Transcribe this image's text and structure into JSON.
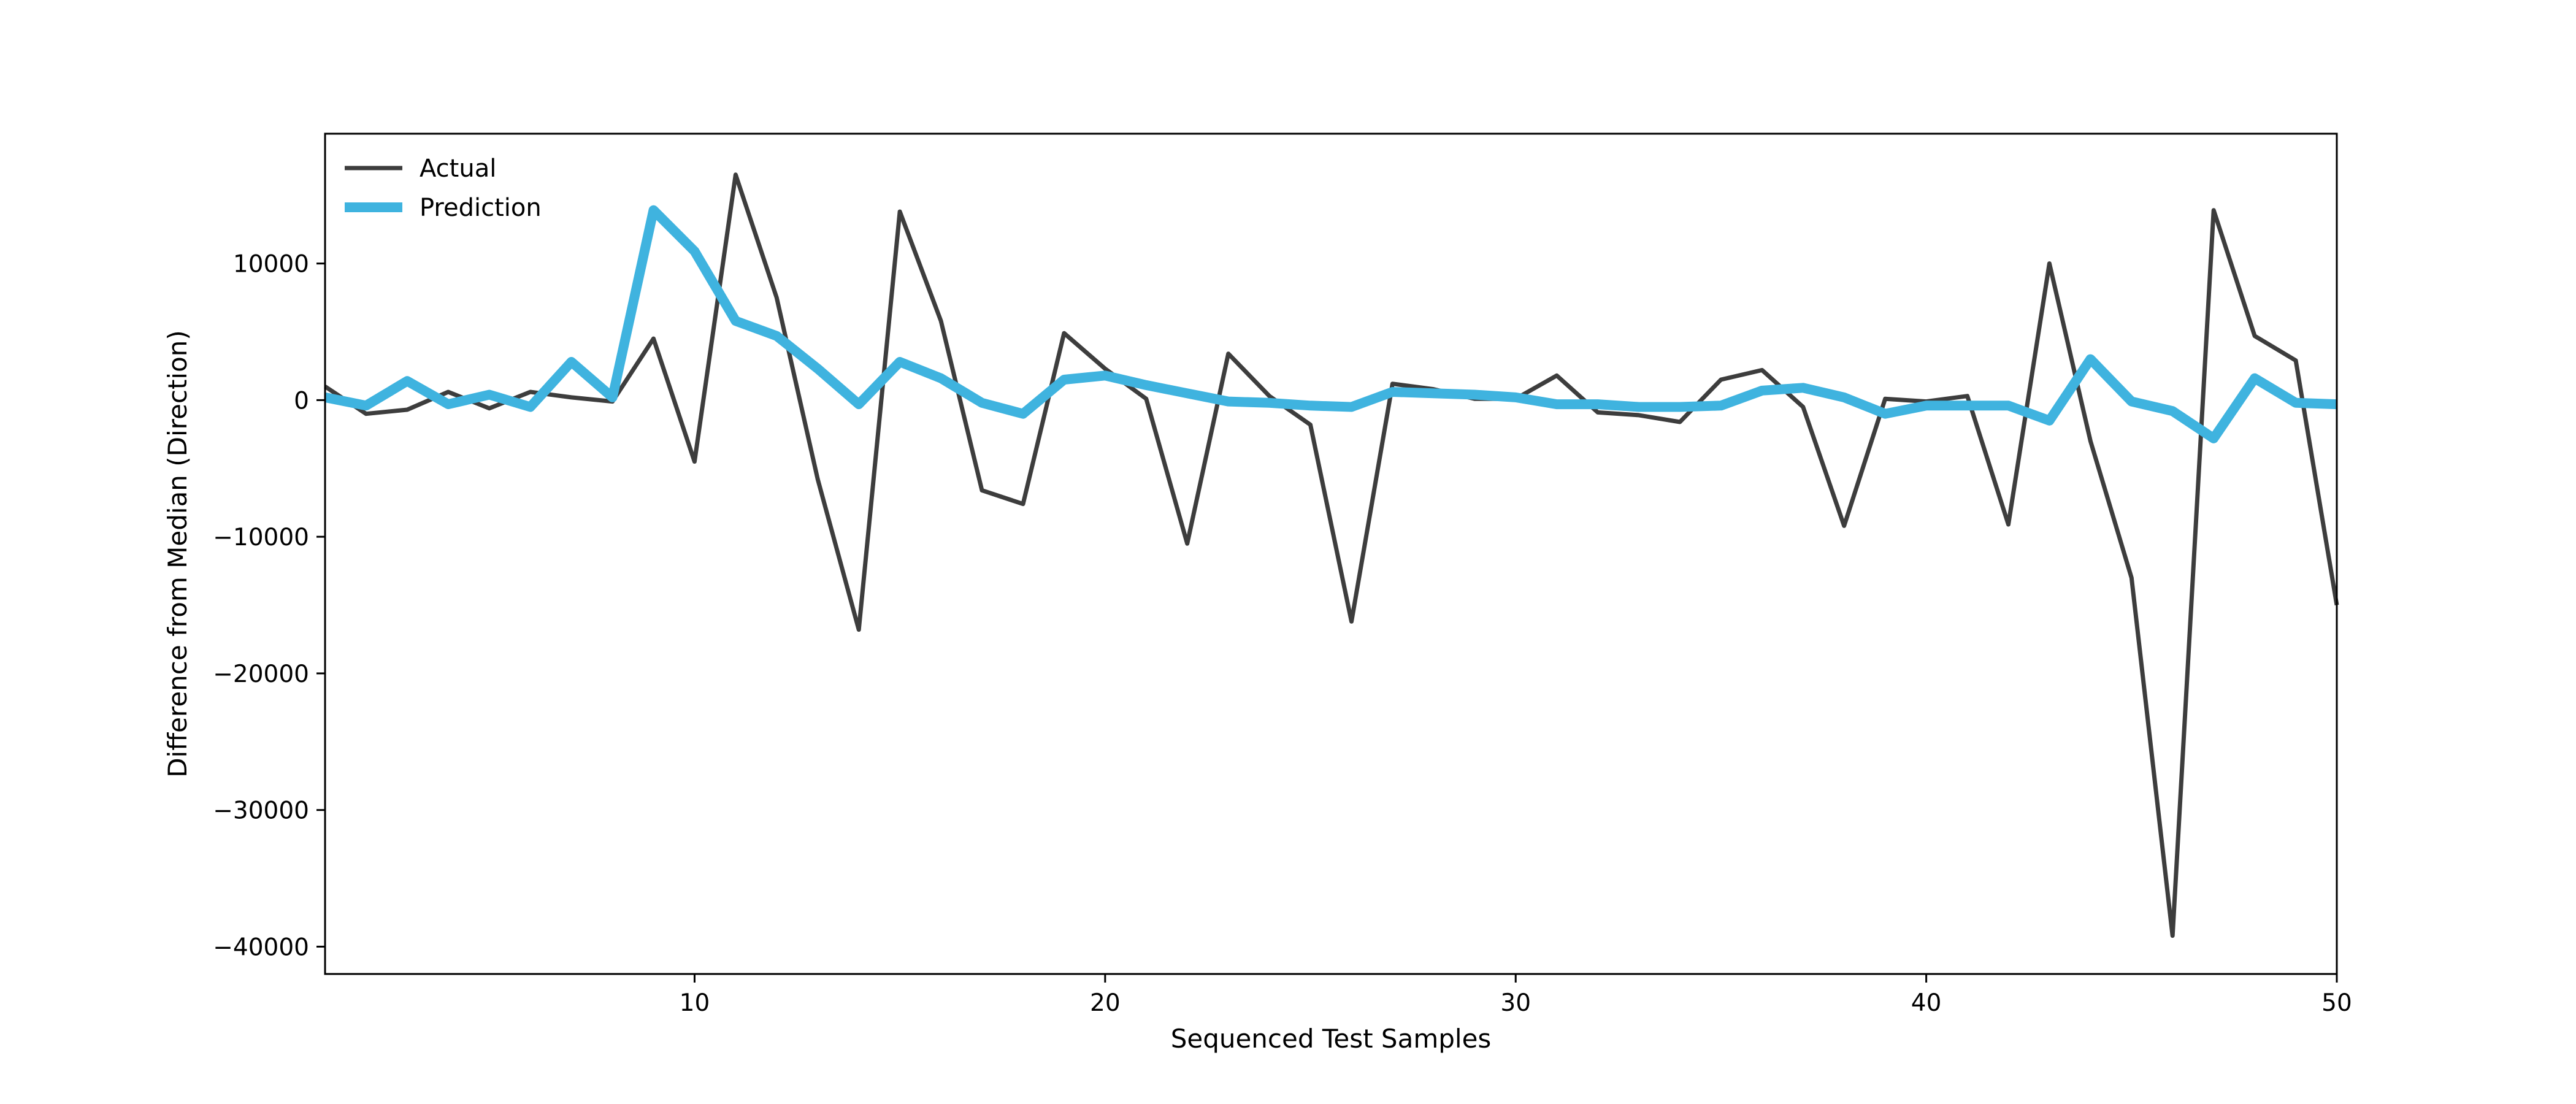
{
  "chart_data": {
    "type": "line",
    "title": "",
    "xlabel": "Sequenced Test Samples",
    "ylabel": "Difference from Median (Direction)",
    "xlim": [
      1,
      50
    ],
    "ylim": [
      -42000,
      19500
    ],
    "xticks": [
      10,
      20,
      30,
      40,
      50
    ],
    "yticks": [
      -40000,
      -30000,
      -20000,
      -10000,
      0,
      10000
    ],
    "grid": false,
    "legend_position": "top-left",
    "x": [
      1,
      2,
      3,
      4,
      5,
      6,
      7,
      8,
      9,
      10,
      11,
      12,
      13,
      14,
      15,
      16,
      17,
      18,
      19,
      20,
      21,
      22,
      23,
      24,
      25,
      26,
      27,
      28,
      29,
      30,
      31,
      32,
      33,
      34,
      35,
      36,
      37,
      38,
      39,
      40,
      41,
      42,
      43,
      44,
      45,
      46,
      47,
      48,
      49,
      50
    ],
    "series": [
      {
        "name": "Actual",
        "color": "#3d3d3d",
        "values": [
          1000,
          -1000,
          -700,
          600,
          -600,
          600,
          200,
          -100,
          4500,
          -4500,
          16500,
          7500,
          -5800,
          -16800,
          13800,
          5800,
          -6600,
          -7600,
          4900,
          2300,
          100,
          -10500,
          3400,
          300,
          -1800,
          -16200,
          1200,
          800,
          100,
          100,
          1800,
          -900,
          -1100,
          -1600,
          1500,
          2200,
          -500,
          -9200,
          100,
          -100,
          300,
          -9100,
          10000,
          -3000,
          -13000,
          -39200,
          13900,
          4700,
          2900,
          -15000
        ]
      },
      {
        "name": "Prediction",
        "color": "#3fb3df",
        "values": [
          200,
          -400,
          1400,
          -300,
          400,
          -500,
          2800,
          200,
          13900,
          10900,
          5800,
          4700,
          2300,
          -300,
          2800,
          1600,
          -200,
          -1000,
          1500,
          1800,
          1100,
          500,
          -100,
          -200,
          -400,
          -500,
          600,
          500,
          400,
          200,
          -300,
          -300,
          -500,
          -500,
          -400,
          700,
          900,
          200,
          -1000,
          -400,
          -400,
          -400,
          -1500,
          3000,
          -100,
          -800,
          -2800,
          1600,
          -200,
          -300
        ]
      }
    ]
  }
}
